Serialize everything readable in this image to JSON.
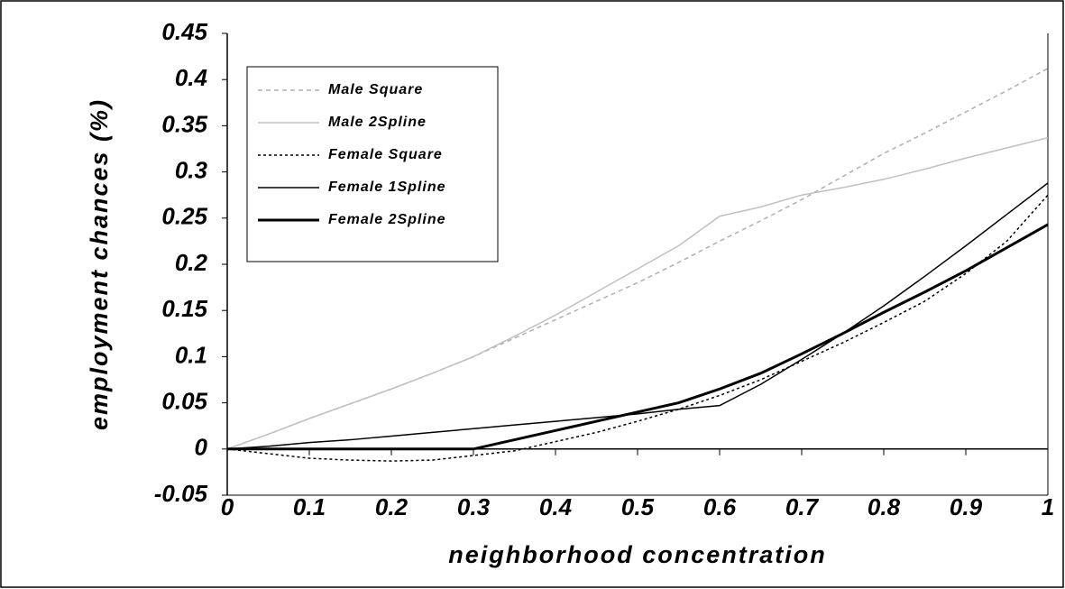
{
  "chart_data": {
    "type": "line",
    "x_label": "neighborhood concentration",
    "y_label": "employment chances (%)",
    "x": [
      0,
      0.05,
      0.1,
      0.15,
      0.2,
      0.25,
      0.3,
      0.35,
      0.4,
      0.45,
      0.5,
      0.55,
      0.6,
      0.65,
      0.7,
      0.75,
      0.8,
      0.85,
      0.9,
      0.95,
      1
    ],
    "series": [
      {
        "name": "Male Square",
        "color": "#b0b0b0",
        "line_style": "dashed",
        "values": [
          0,
          0.016,
          0.033,
          0.049,
          0.065,
          0.082,
          0.1,
          0.12,
          0.14,
          0.16,
          0.18,
          0.202,
          0.225,
          0.247,
          0.27,
          0.295,
          0.32,
          0.342,
          0.365,
          0.388,
          0.412
        ]
      },
      {
        "name": "Male 2Spline",
        "color": "#c0c0c0",
        "line_style": "solid",
        "values": [
          0,
          0.016,
          0.033,
          0.049,
          0.065,
          0.082,
          0.1,
          0.122,
          0.145,
          0.17,
          0.195,
          0.22,
          0.252,
          0.262,
          0.275,
          0.283,
          0.292,
          0.303,
          0.315,
          0.326,
          0.337
        ]
      },
      {
        "name": "Female Square",
        "color": "#000000",
        "line_style": "dotted",
        "values": [
          0,
          -0.005,
          -0.01,
          -0.012,
          -0.013,
          -0.012,
          -0.007,
          -0.002,
          0.008,
          0.018,
          0.03,
          0.043,
          0.058,
          0.075,
          0.095,
          0.115,
          0.137,
          0.16,
          0.19,
          0.225,
          0.275
        ]
      },
      {
        "name": "Female 1Spline",
        "color": "#000000",
        "line_style": "solid",
        "values": [
          0,
          0.003,
          0.007,
          0.01,
          0.014,
          0.018,
          0.022,
          0.026,
          0.03,
          0.034,
          0.038,
          0.043,
          0.047,
          0.07,
          0.097,
          0.125,
          0.155,
          0.187,
          0.22,
          0.254,
          0.288
        ]
      },
      {
        "name": "Female 2Spline",
        "color": "#000000",
        "line_style": "thick",
        "values": [
          0,
          0,
          0,
          0,
          0,
          0,
          0,
          0.01,
          0.02,
          0.03,
          0.04,
          0.05,
          0.065,
          0.082,
          0.103,
          0.125,
          0.148,
          0.17,
          0.193,
          0.218,
          0.243
        ]
      }
    ],
    "xlim": [
      0,
      1
    ],
    "xticks": [
      0,
      0.1,
      0.2,
      0.3,
      0.4,
      0.5,
      0.6,
      0.7,
      0.8,
      0.9,
      1
    ],
    "ylim": [
      -0.05,
      0.45
    ],
    "yticks": [
      -0.05,
      0,
      0.05,
      0.1,
      0.15,
      0.2,
      0.25,
      0.3,
      0.35,
      0.4,
      0.45
    ],
    "legend": "upper left"
  }
}
